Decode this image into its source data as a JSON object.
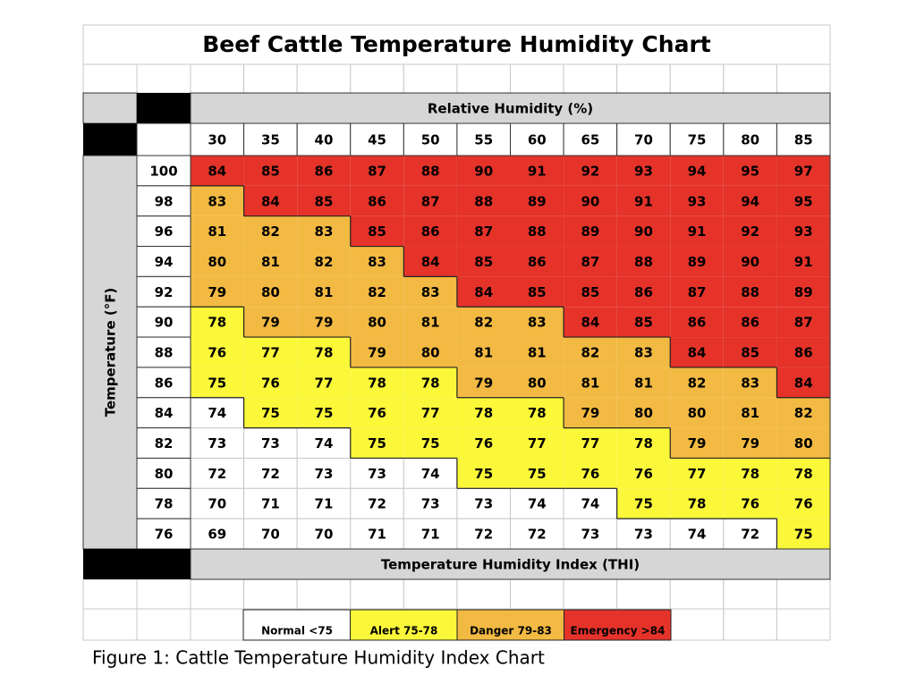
{
  "title": "Beef Cattle Temperature Humidity Chart",
  "column_header": "Relative Humidity (%)",
  "row_header": "Temperature (°F)",
  "footer": "Temperature Humidity Index (THI)",
  "humidity": [
    30,
    35,
    40,
    45,
    50,
    55,
    60,
    65,
    70,
    75,
    80,
    85
  ],
  "temperature": [
    100,
    98,
    96,
    94,
    92,
    90,
    88,
    86,
    84,
    82,
    80,
    78,
    76
  ],
  "rows": [
    [
      84,
      85,
      86,
      87,
      88,
      90,
      91,
      92,
      93,
      94,
      95,
      97
    ],
    [
      83,
      84,
      85,
      86,
      87,
      88,
      89,
      90,
      91,
      93,
      94,
      95
    ],
    [
      81,
      82,
      83,
      85,
      86,
      87,
      88,
      89,
      90,
      91,
      92,
      93
    ],
    [
      80,
      81,
      82,
      83,
      84,
      85,
      86,
      87,
      88,
      89,
      90,
      91
    ],
    [
      79,
      80,
      81,
      82,
      83,
      84,
      85,
      85,
      86,
      87,
      88,
      89
    ],
    [
      78,
      79,
      79,
      80,
      81,
      82,
      83,
      84,
      85,
      86,
      86,
      87
    ],
    [
      76,
      77,
      78,
      79,
      80,
      81,
      81,
      82,
      83,
      84,
      85,
      86
    ],
    [
      75,
      76,
      77,
      78,
      78,
      79,
      80,
      81,
      81,
      82,
      83,
      84
    ],
    [
      74,
      75,
      75,
      76,
      77,
      78,
      78,
      79,
      80,
      80,
      81,
      82
    ],
    [
      73,
      73,
      74,
      75,
      75,
      76,
      77,
      77,
      78,
      79,
      79,
      80
    ],
    [
      72,
      72,
      73,
      73,
      74,
      75,
      75,
      76,
      76,
      77,
      78,
      78
    ],
    [
      70,
      71,
      71,
      72,
      73,
      73,
      74,
      74,
      75,
      78,
      76,
      76
    ],
    [
      69,
      70,
      70,
      71,
      71,
      72,
      72,
      73,
      73,
      74,
      72,
      75
    ]
  ],
  "levels": [
    [
      3,
      3,
      3,
      3,
      3,
      3,
      3,
      3,
      3,
      3,
      3,
      3
    ],
    [
      2,
      3,
      3,
      3,
      3,
      3,
      3,
      3,
      3,
      3,
      3,
      3
    ],
    [
      2,
      2,
      2,
      3,
      3,
      3,
      3,
      3,
      3,
      3,
      3,
      3
    ],
    [
      2,
      2,
      2,
      2,
      3,
      3,
      3,
      3,
      3,
      3,
      3,
      3
    ],
    [
      2,
      2,
      2,
      2,
      2,
      3,
      3,
      3,
      3,
      3,
      3,
      3
    ],
    [
      1,
      2,
      2,
      2,
      2,
      2,
      2,
      3,
      3,
      3,
      3,
      3
    ],
    [
      1,
      1,
      1,
      2,
      2,
      2,
      2,
      2,
      2,
      3,
      3,
      3
    ],
    [
      1,
      1,
      1,
      1,
      1,
      2,
      2,
      2,
      2,
      2,
      2,
      3
    ],
    [
      0,
      1,
      1,
      1,
      1,
      1,
      1,
      2,
      2,
      2,
      2,
      2
    ],
    [
      0,
      0,
      0,
      1,
      1,
      1,
      1,
      1,
      1,
      2,
      2,
      2
    ],
    [
      0,
      0,
      0,
      0,
      0,
      1,
      1,
      1,
      1,
      1,
      1,
      1
    ],
    [
      0,
      0,
      0,
      0,
      0,
      0,
      0,
      0,
      1,
      1,
      1,
      1
    ],
    [
      0,
      0,
      0,
      0,
      0,
      0,
      0,
      0,
      0,
      0,
      0,
      1
    ]
  ],
  "legend": [
    {
      "label": "Normal <75",
      "color": "#ffffff"
    },
    {
      "label": "Alert 75-78",
      "color": "#fbf83a"
    },
    {
      "label": "Danger 79-83",
      "color": "#f2ba43"
    },
    {
      "label": "Emergency >84",
      "color": "#e5332a"
    }
  ],
  "caption": "Figure 1: Cattle Temperature Humidity Index Chart"
}
